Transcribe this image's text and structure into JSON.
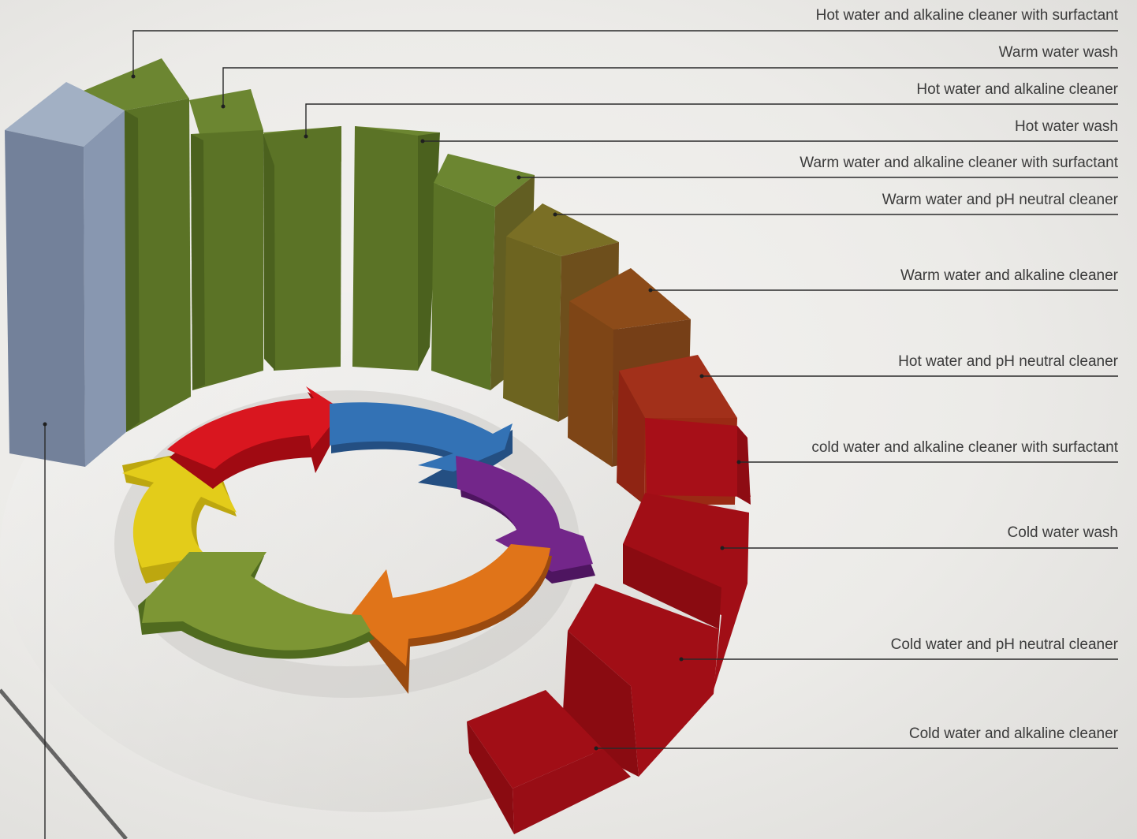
{
  "labels": [
    "Hot water and alkaline cleaner with surfactant",
    "Warm water wash",
    "Hot water and alkaline cleaner",
    "Hot water wash",
    "Warm water and alkaline cleaner with surfactant",
    "Warm water and pH neutral cleaner",
    "Warm water and alkaline cleaner",
    "Hot water and pH neutral cleaner",
    "cold water and alkaline cleaner with surfactant",
    "Cold water wash",
    "Cold water and pH neutral cleaner",
    "Cold water and alkaline cleaner"
  ],
  "colors": {
    "gray_bar": "#7b889c",
    "green": "#5b7326",
    "olive": "#6d6420",
    "brown": "#7e4516",
    "rust": "#9a2a14",
    "red": "#a10e16",
    "leader_line": "#2a2a2a",
    "arrow_red": "#d9161f",
    "arrow_blue": "#3372b5",
    "arrow_purple": "#73268a",
    "arrow_orange": "#e07419",
    "arrow_green": "#7d9634",
    "arrow_yellow": "#e3cc1a"
  }
}
